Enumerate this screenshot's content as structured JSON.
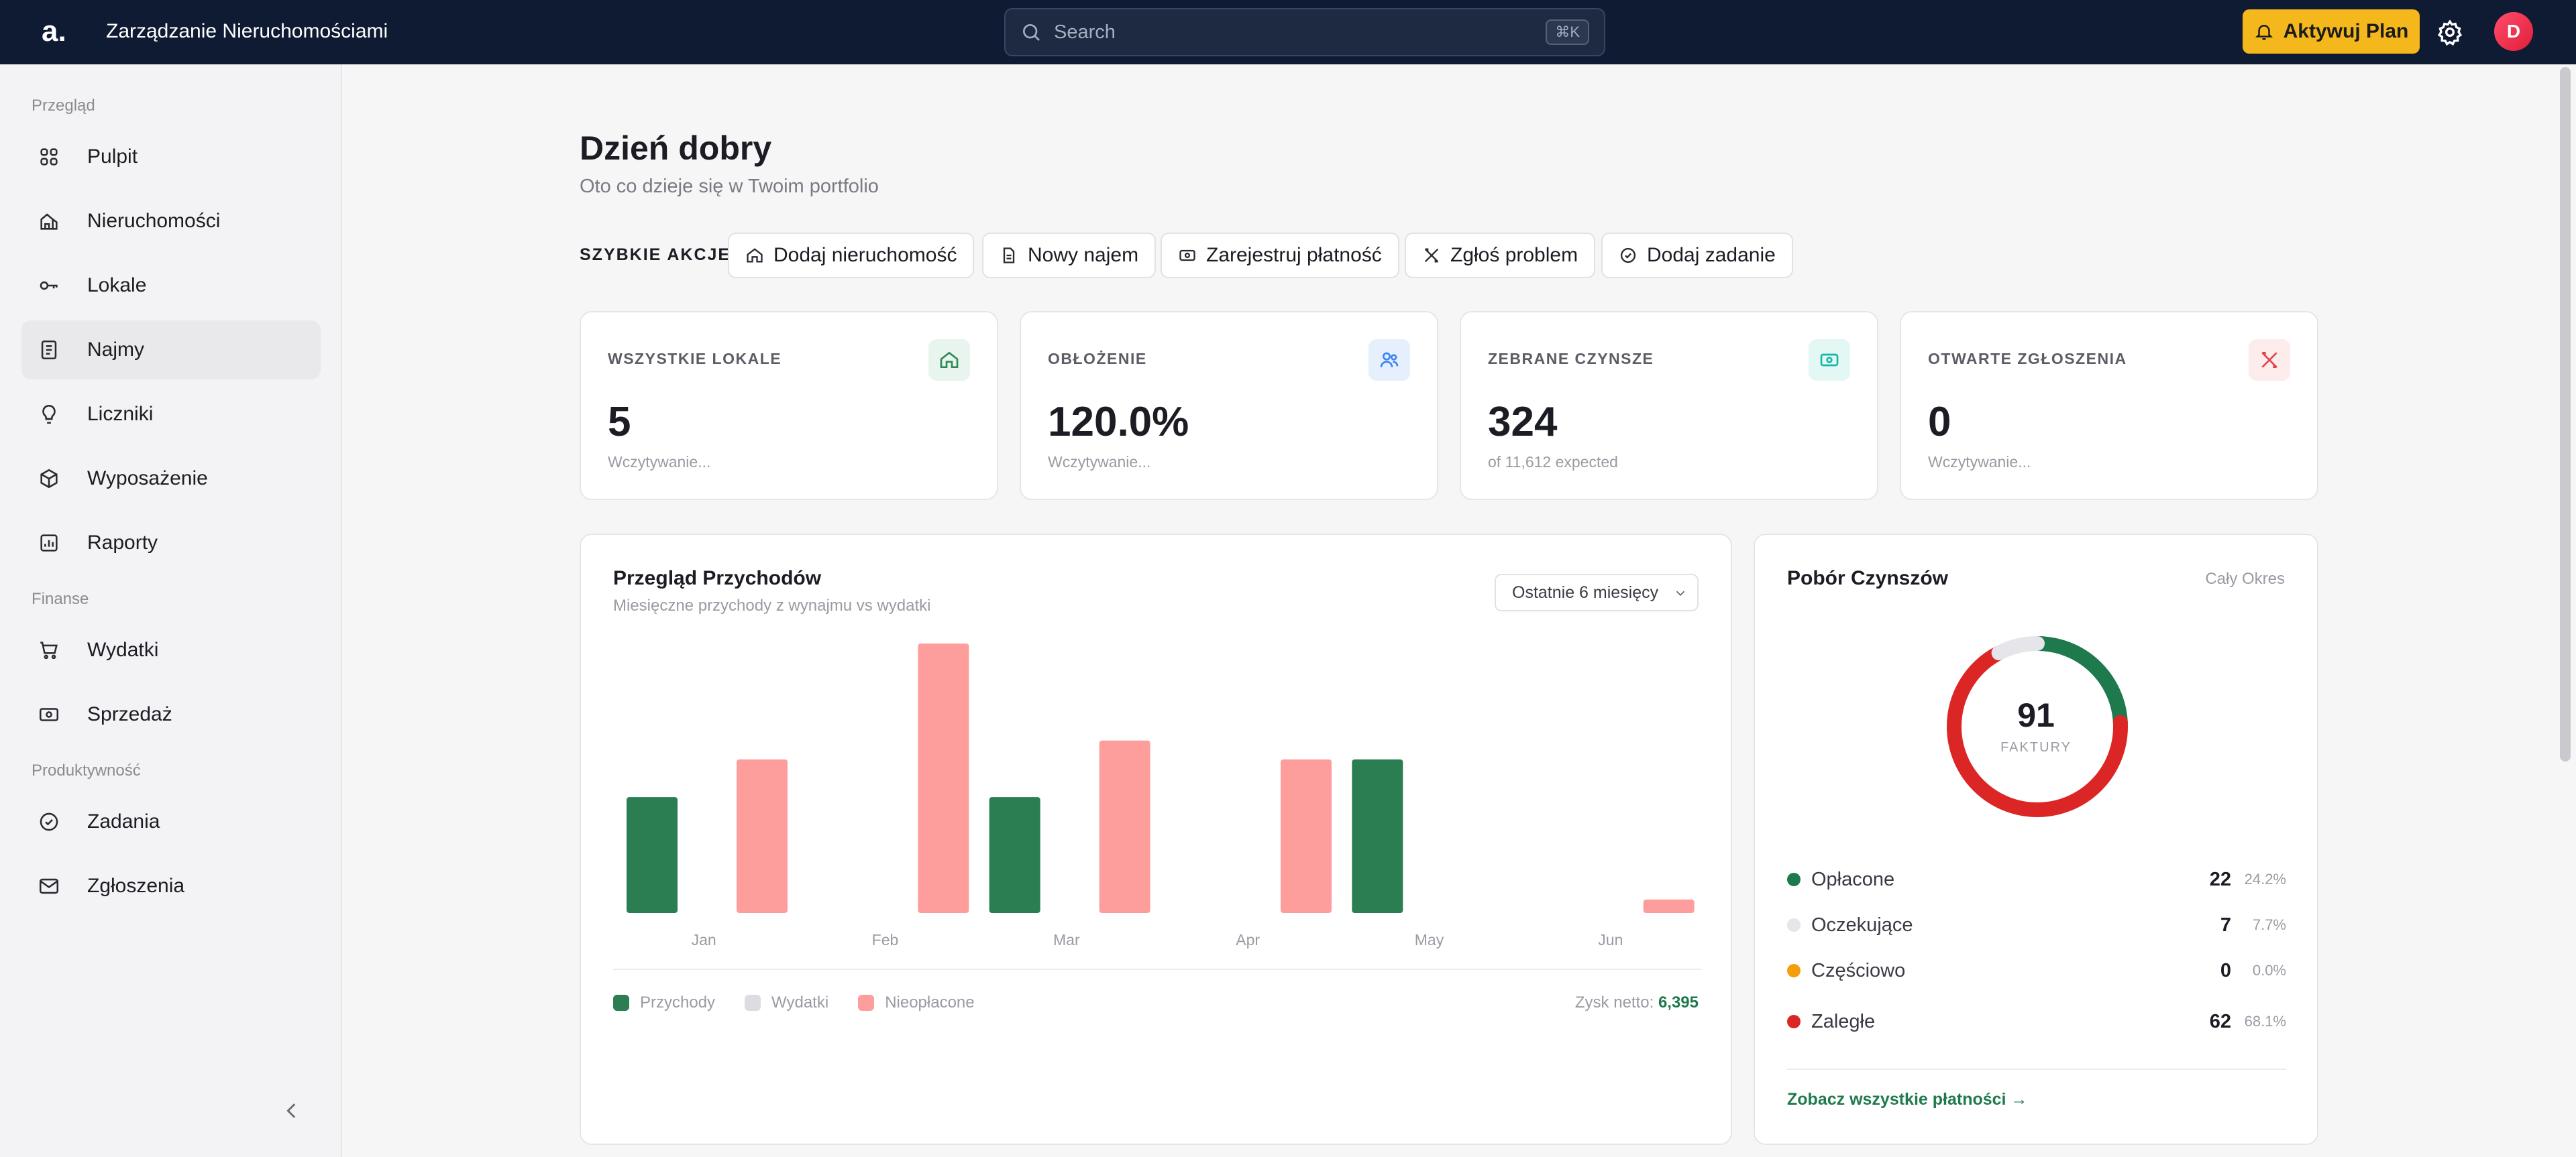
{
  "header": {
    "logo": "a.",
    "title": "Zarządzanie Nieruchomościami",
    "search_placeholder": "Search",
    "search_shortcut": "⌘K",
    "plan_label": "Aktywuj Plan",
    "avatar_initial": "D"
  },
  "sidebar": {
    "sections": [
      {
        "label": "Przegląd"
      },
      {
        "label": "Finanse"
      },
      {
        "label": "Produktywność"
      }
    ],
    "items": [
      {
        "label": "Pulpit",
        "icon": "grid-icon"
      },
      {
        "label": "Nieruchomości",
        "icon": "building-icon"
      },
      {
        "label": "Lokale",
        "icon": "key-icon"
      },
      {
        "label": "Najmy",
        "icon": "document-icon",
        "active": true
      },
      {
        "label": "Liczniki",
        "icon": "lightbulb-icon"
      },
      {
        "label": "Wyposażenie",
        "icon": "box-icon"
      },
      {
        "label": "Raporty",
        "icon": "report-icon"
      },
      {
        "label": "Wydatki",
        "icon": "cart-icon"
      },
      {
        "label": "Sprzedaż",
        "icon": "money-icon"
      },
      {
        "label": "Zadania",
        "icon": "check-circle-icon"
      },
      {
        "label": "Zgłoszenia",
        "icon": "mail-icon"
      }
    ]
  },
  "main": {
    "greeting": "Dzień dobry",
    "subtitle": "Oto co dzieje się w Twoim portfolio",
    "quick_actions_label": "SZYBKIE AKCJE",
    "quick_actions": [
      {
        "label": "Dodaj nieruchomość",
        "icon": "home-icon"
      },
      {
        "label": "Nowy najem",
        "icon": "document-icon"
      },
      {
        "label": "Zarejestruj płatność",
        "icon": "money-icon"
      },
      {
        "label": "Zgłoś problem",
        "icon": "tools-icon"
      },
      {
        "label": "Dodaj zadanie",
        "icon": "check-circle-icon"
      }
    ],
    "kpis": [
      {
        "label": "WSZYSTKIE LOKALE",
        "value": "5",
        "sub": "Wczytywanie...",
        "icon": "home-icon",
        "color": "#2e8b57",
        "bg": "#e8f4ee"
      },
      {
        "label": "OBŁOŻENIE",
        "value": "120.0%",
        "sub": "Wczytywanie...",
        "icon": "users-icon",
        "color": "#3b82f6",
        "bg": "#e6f0fd"
      },
      {
        "label": "ZEBRANE CZYNSZE",
        "value": "324",
        "sub": "of 11,612 expected",
        "icon": "money-icon",
        "color": "#14b8a6",
        "bg": "#e3f7f4"
      },
      {
        "label": "OTWARTE ZGŁOSZENIA",
        "value": "0",
        "sub": "Wczytywanie...",
        "icon": "tools-icon",
        "color": "#e0474c",
        "bg": "#fdecec"
      }
    ],
    "revenue": {
      "title": "Przegląd Przychodów",
      "subtitle": "Miesięczne przychody z wynajmu vs wydatki",
      "period": "Ostatnie 6 miesięcy",
      "net_label": "Zysk netto:",
      "net_value": "6,395"
    },
    "rent": {
      "title": "Pobór Czynszów",
      "period": "Cały Okres",
      "total": "91",
      "total_label": "FAKTURY",
      "link": "Zobacz wszystkie płatności →",
      "items": [
        {
          "label": "Opłacone",
          "count": "22",
          "pct": "24.2%",
          "color": "#1e7a4d"
        },
        {
          "label": "Oczekujące",
          "count": "7",
          "pct": "7.7%",
          "color": "#e5e5ea"
        },
        {
          "label": "Częściowo",
          "count": "0",
          "pct": "0.0%",
          "color": "#f59e0b"
        },
        {
          "label": "Zaległe",
          "count": "62",
          "pct": "68.1%",
          "color": "#dc2626"
        }
      ]
    }
  },
  "chart_data": {
    "type": "bar",
    "categories": [
      "Jan",
      "Feb",
      "Mar",
      "Apr",
      "May",
      "Jun"
    ],
    "ylim": [
      0,
      100
    ],
    "series": [
      {
        "name": "Przychody",
        "color": "#2b7d52",
        "values": [
          43,
          0,
          43,
          0,
          57,
          0
        ]
      },
      {
        "name": "Wydatki",
        "color": "#dcdde0",
        "values": [
          0,
          0,
          0,
          0,
          0,
          0
        ]
      },
      {
        "name": "Nieopłacone",
        "color": "#fe9e9c",
        "values": [
          57,
          100,
          64,
          57,
          0,
          5
        ]
      }
    ]
  }
}
